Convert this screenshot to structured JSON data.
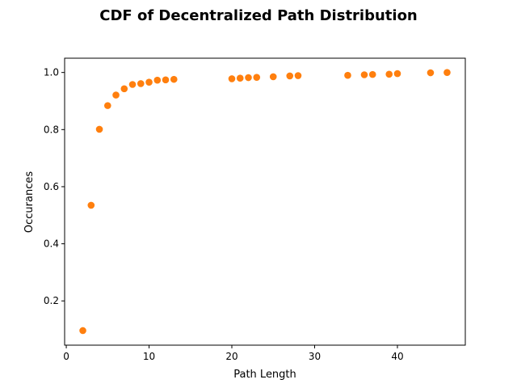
{
  "chart_data": {
    "type": "scatter",
    "title": "CDF of Decentralized Path Distribution",
    "xlabel": "Path Length",
    "ylabel": "Occurances",
    "xlim": [
      -0.2,
      48.2
    ],
    "ylim": [
      0.045,
      1.05
    ],
    "xticks": [
      0,
      10,
      20,
      30,
      40
    ],
    "yticks": [
      0.2,
      0.4,
      0.6,
      0.8,
      1.0
    ],
    "ytick_labels": [
      "0.2",
      "0.4",
      "0.6",
      "0.8",
      "1.0"
    ],
    "grid": false,
    "marker_color": "#ff7f0e",
    "series": [
      {
        "x": [
          2,
          3,
          4,
          5,
          6,
          7,
          8,
          9,
          10,
          11,
          12,
          13,
          20,
          21,
          22,
          23,
          25,
          27,
          28,
          34,
          36,
          37,
          39,
          40,
          44,
          46
        ],
        "y": [
          0.096,
          0.535,
          0.801,
          0.884,
          0.921,
          0.943,
          0.958,
          0.961,
          0.966,
          0.973,
          0.974,
          0.976,
          0.978,
          0.98,
          0.982,
          0.983,
          0.985,
          0.988,
          0.989,
          0.99,
          0.992,
          0.993,
          0.994,
          0.996,
          0.999,
          1.0
        ]
      }
    ]
  }
}
